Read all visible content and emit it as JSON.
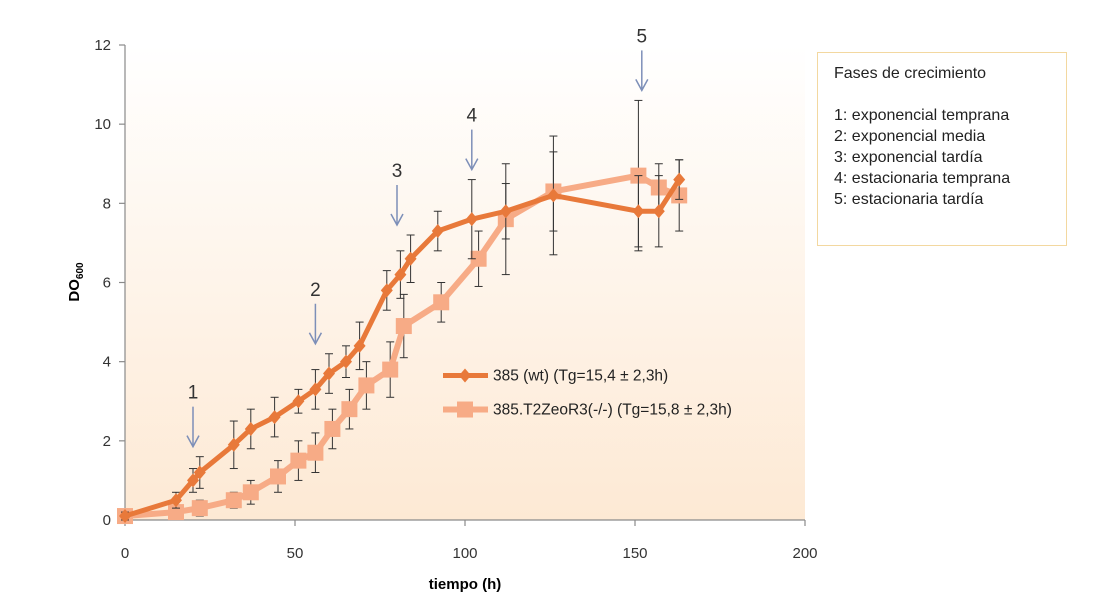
{
  "chart_data": {
    "type": "line",
    "title": "",
    "xlabel": "tiempo (h)",
    "ylabel": "DO",
    "ylabel_sub": "600",
    "xlim": [
      0,
      200
    ],
    "ylim": [
      0,
      12
    ],
    "xticks": [
      0,
      50,
      100,
      150,
      200
    ],
    "yticks": [
      0,
      2,
      4,
      6,
      8,
      10,
      12
    ],
    "grid": false,
    "legend_position": "center-right",
    "series": [
      {
        "name": "385 (wt)   (Tg=15,4 ± 2,3h)",
        "color": "#e8793a",
        "marker": "diamond",
        "points": [
          {
            "x": 0,
            "y": 0.1,
            "err": 0.1
          },
          {
            "x": 15,
            "y": 0.5,
            "err": 0.2
          },
          {
            "x": 20,
            "y": 1.0,
            "err": 0.3
          },
          {
            "x": 22,
            "y": 1.2,
            "err": 0.4
          },
          {
            "x": 32,
            "y": 1.9,
            "err": 0.6
          },
          {
            "x": 37,
            "y": 2.3,
            "err": 0.5
          },
          {
            "x": 44,
            "y": 2.6,
            "err": 0.5
          },
          {
            "x": 51,
            "y": 3.0,
            "err": 0.3
          },
          {
            "x": 56,
            "y": 3.3,
            "err": 0.5
          },
          {
            "x": 60,
            "y": 3.7,
            "err": 0.5
          },
          {
            "x": 65,
            "y": 4.0,
            "err": 0.4
          },
          {
            "x": 69,
            "y": 4.4,
            "err": 0.6
          },
          {
            "x": 77,
            "y": 5.8,
            "err": 0.5
          },
          {
            "x": 81,
            "y": 6.2,
            "err": 0.6
          },
          {
            "x": 84,
            "y": 6.6,
            "err": 0.6
          },
          {
            "x": 92,
            "y": 7.3,
            "err": 0.5
          },
          {
            "x": 102,
            "y": 7.6,
            "err": 1.0
          },
          {
            "x": 112,
            "y": 7.8,
            "err": 0.7
          },
          {
            "x": 126,
            "y": 8.2,
            "err": 1.5
          },
          {
            "x": 151,
            "y": 7.8,
            "err": 0.9
          },
          {
            "x": 157,
            "y": 7.8,
            "err": 0.9
          },
          {
            "x": 163,
            "y": 8.6,
            "err": 0.5
          }
        ]
      },
      {
        "name": "385.T2ZeoR3(-/-)  (Tg=15,8 ± 2,3h)",
        "color": "#f7ab86",
        "marker": "square",
        "points": [
          {
            "x": 0,
            "y": 0.1,
            "err": 0.1
          },
          {
            "x": 15,
            "y": 0.2,
            "err": 0.1
          },
          {
            "x": 22,
            "y": 0.3,
            "err": 0.2
          },
          {
            "x": 32,
            "y": 0.5,
            "err": 0.2
          },
          {
            "x": 37,
            "y": 0.7,
            "err": 0.3
          },
          {
            "x": 45,
            "y": 1.1,
            "err": 0.4
          },
          {
            "x": 51,
            "y": 1.5,
            "err": 0.5
          },
          {
            "x": 56,
            "y": 1.7,
            "err": 0.5
          },
          {
            "x": 61,
            "y": 2.3,
            "err": 0.5
          },
          {
            "x": 66,
            "y": 2.8,
            "err": 0.5
          },
          {
            "x": 71,
            "y": 3.4,
            "err": 0.6
          },
          {
            "x": 78,
            "y": 3.8,
            "err": 0.7
          },
          {
            "x": 82,
            "y": 4.9,
            "err": 0.8
          },
          {
            "x": 93,
            "y": 5.5,
            "err": 0.5
          },
          {
            "x": 104,
            "y": 6.6,
            "err": 0.7
          },
          {
            "x": 112,
            "y": 7.6,
            "err": 1.4
          },
          {
            "x": 126,
            "y": 8.3,
            "err": 1.0
          },
          {
            "x": 151,
            "y": 8.7,
            "err": 1.9
          },
          {
            "x": 157,
            "y": 8.4,
            "err": 0.6
          },
          {
            "x": 163,
            "y": 8.2,
            "err": 0.9
          }
        ]
      }
    ],
    "annotations": [
      {
        "label": "1",
        "x": 20
      },
      {
        "label": "2",
        "x": 56
      },
      {
        "label": "3",
        "x": 80
      },
      {
        "label": "4",
        "x": 102
      },
      {
        "label": "5",
        "x": 152
      }
    ]
  },
  "phase_legend": {
    "title": "Fases de crecimiento",
    "items": [
      "1: exponencial temprana",
      "2: exponencial media",
      "3: exponencial tardía",
      "4: estacionaria temprana",
      "5: estacionaria tardía"
    ]
  },
  "colors": {
    "plot_background": "#fde9d4",
    "phase_box_border": "#f3d8a0",
    "arrow": "#7d8fb8"
  }
}
